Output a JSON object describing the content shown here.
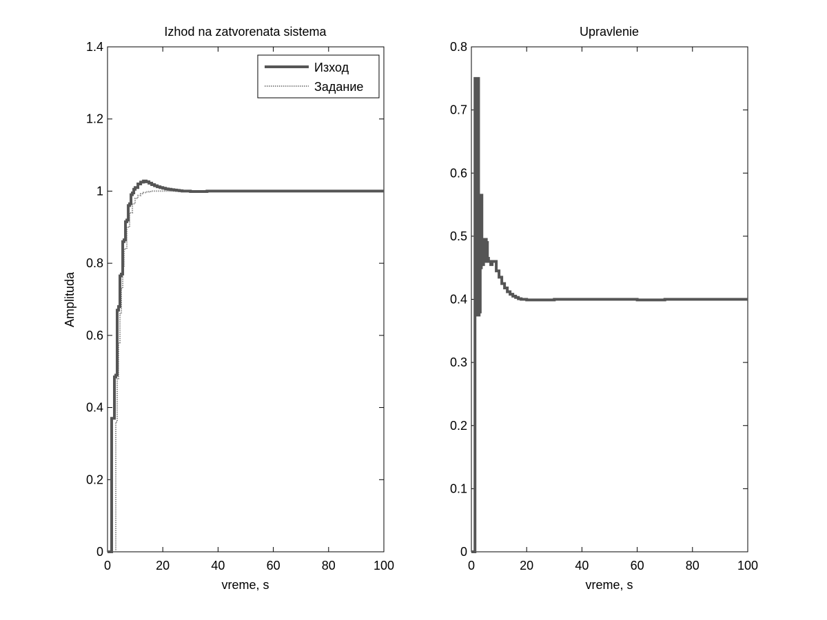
{
  "chart_data": [
    {
      "type": "line",
      "title": "Izhod na zatvorenata sistema",
      "xlabel": "vreme, s",
      "ylabel": "Amplituda",
      "xlim": [
        0,
        100
      ],
      "ylim": [
        0,
        1.4
      ],
      "xticks": [
        "0",
        "20",
        "40",
        "60",
        "80",
        "100"
      ],
      "yticks": [
        "0",
        "0.2",
        "0.4",
        "0.6",
        "0.8",
        "1",
        "1.2",
        "1.4"
      ],
      "legend_position": "top-right",
      "colors": {
        "output": "#555555",
        "setpoint": "#888888",
        "axes": "#000000"
      },
      "series": [
        {
          "name": "Изход",
          "style": "solid-thick",
          "step": true,
          "x": [
            0,
            1.5,
            2.5,
            3,
            3.5,
            4,
            4.5,
            5,
            5.5,
            6,
            6.5,
            7,
            7.5,
            8,
            8.5,
            9,
            9.5,
            10,
            11,
            12,
            13,
            14,
            15,
            16,
            17,
            18,
            19,
            20,
            21,
            22,
            23,
            24,
            25,
            26,
            27,
            28,
            30,
            32,
            34,
            36,
            38,
            100
          ],
          "y": [
            0,
            0.37,
            0.485,
            0.49,
            0.67,
            0.68,
            0.765,
            0.77,
            0.86,
            0.865,
            0.915,
            0.92,
            0.96,
            0.965,
            0.99,
            0.995,
            1.005,
            1.01,
            1.02,
            1.025,
            1.028,
            1.026,
            1.022,
            1.018,
            1.015,
            1.012,
            1.01,
            1.008,
            1.006,
            1.005,
            1.004,
            1.003,
            1.002,
            1.001,
            1.0,
            1.0,
            0.999,
            0.999,
            0.999,
            1.0,
            1.0,
            1.0
          ]
        },
        {
          "name": "Задание",
          "style": "dotted",
          "step": true,
          "x": [
            0,
            3,
            3.5,
            4,
            4.5,
            5,
            5.5,
            6,
            7,
            8,
            9,
            10,
            11,
            12,
            13,
            14,
            15,
            16,
            18,
            20,
            22,
            24,
            26,
            30,
            40,
            100
          ],
          "y": [
            0,
            0.36,
            0.48,
            0.58,
            0.66,
            0.73,
            0.79,
            0.84,
            0.9,
            0.94,
            0.965,
            0.98,
            0.988,
            0.993,
            0.996,
            0.998,
            0.999,
            1.0,
            1.0,
            1.0,
            1.0,
            1.0,
            1.0,
            1.0,
            1.0,
            1.0
          ]
        }
      ]
    },
    {
      "type": "line",
      "title": "Upravlenie",
      "xlabel": "vreme, s",
      "ylabel": "",
      "xlim": [
        0,
        100
      ],
      "ylim": [
        0,
        0.8
      ],
      "xticks": [
        "0",
        "20",
        "40",
        "60",
        "80",
        "100"
      ],
      "yticks": [
        "0",
        "0.1",
        "0.2",
        "0.3",
        "0.4",
        "0.5",
        "0.6",
        "0.7",
        "0.8"
      ],
      "colors": {
        "control": "#555555",
        "axes": "#000000"
      },
      "series": [
        {
          "name": "",
          "style": "solid-thick",
          "step": true,
          "x": [
            0,
            1.3,
            2.0,
            2.3,
            2.6,
            2.8,
            3.0,
            3.2,
            3.4,
            3.6,
            3.8,
            4.0,
            4.2,
            4.4,
            4.6,
            4.8,
            5.0,
            5.2,
            5.4,
            5.6,
            5.8,
            6.0,
            6.2,
            6.5,
            7.0,
            7.5,
            8.0,
            9.0,
            10,
            11,
            12,
            13,
            14,
            15,
            16,
            17,
            18,
            19,
            20,
            22,
            25,
            30,
            35,
            40,
            45,
            50,
            55,
            60,
            65,
            70,
            75,
            80,
            85,
            90,
            95,
            100
          ],
          "y": [
            0,
            0.75,
            0.375,
            0.75,
            0.375,
            0.55,
            0.38,
            0.565,
            0.45,
            0.565,
            0.455,
            0.46,
            0.455,
            0.49,
            0.46,
            0.495,
            0.46,
            0.495,
            0.46,
            0.49,
            0.46,
            0.465,
            0.46,
            0.46,
            0.455,
            0.46,
            0.46,
            0.445,
            0.435,
            0.425,
            0.418,
            0.412,
            0.408,
            0.405,
            0.403,
            0.401,
            0.4,
            0.4,
            0.399,
            0.399,
            0.399,
            0.4,
            0.4,
            0.4,
            0.4,
            0.4,
            0.4,
            0.399,
            0.399,
            0.4,
            0.4,
            0.4,
            0.4,
            0.4,
            0.4,
            0.4
          ]
        }
      ]
    }
  ]
}
